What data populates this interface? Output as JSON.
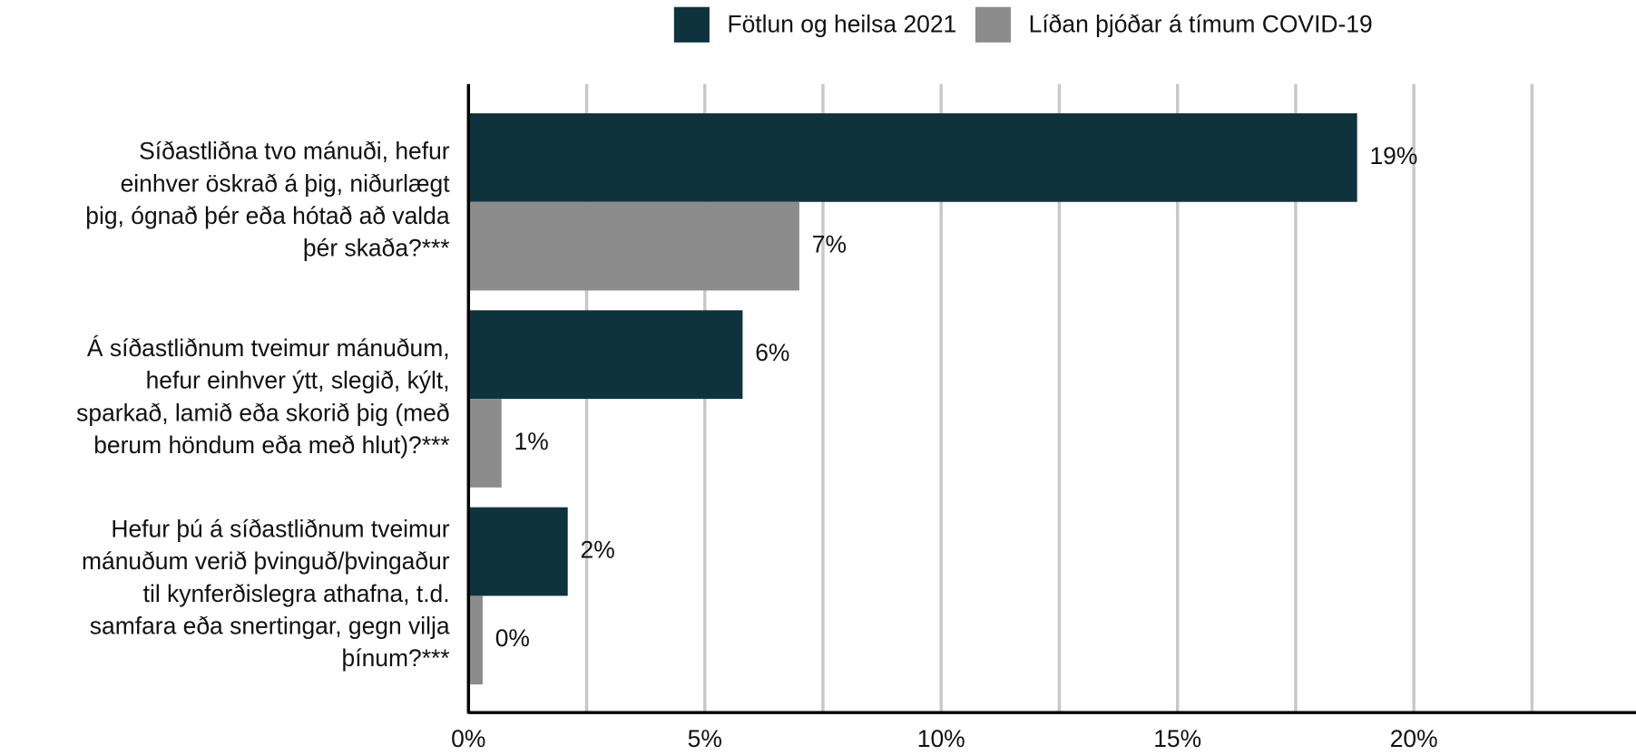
{
  "chart_data": {
    "type": "barh",
    "categories": [
      [
        "Síðastliðna tvo mánuði, hefur",
        "einhver öskrað á þig, niðurlægt",
        "þig, ógnað þér eða hótað að valda",
        "þér skaða?***"
      ],
      [
        "Á síðastliðnum tveimur mánuðum,",
        "hefur einhver ýtt, slegið, kýlt,",
        "sparkað, lamið eða skorið þig (með",
        "berum höndum eða með hlut)?***"
      ],
      [
        "Hefur þú á síðastliðnum tveimur",
        "mánuðum verið þvinguð/þvingaður",
        "til kynferðislegra athafna, t.d.",
        "samfara eða snertingar, gegn vilja",
        "þínum?***"
      ]
    ],
    "series": [
      {
        "name": "Fötlun og heilsa 2021",
        "color": "#0e333d",
        "label_color": "#2f5461",
        "values": [
          18.8,
          5.8,
          2.1
        ],
        "value_labels": [
          "19%",
          "6%",
          "2%"
        ]
      },
      {
        "name": "Líðan þjóðar á tímum COVID-19",
        "color": "#8c8c8c",
        "label_color": "#9a9a9a",
        "values": [
          7.0,
          0.7,
          0.3
        ],
        "value_labels": [
          "7%",
          "1%",
          "0%"
        ]
      }
    ],
    "xlim": [
      0,
      24.7
    ],
    "xticks": [
      {
        "value": 0,
        "label": "0%"
      },
      {
        "value": 5,
        "label": "5%"
      },
      {
        "value": 10,
        "label": "10%"
      },
      {
        "value": 15,
        "label": "15%"
      },
      {
        "value": 20,
        "label": "20%"
      }
    ],
    "minor_xticks": [
      2.5,
      7.5,
      12.5,
      17.5,
      22.5
    ],
    "grid": true,
    "legend": "top"
  }
}
